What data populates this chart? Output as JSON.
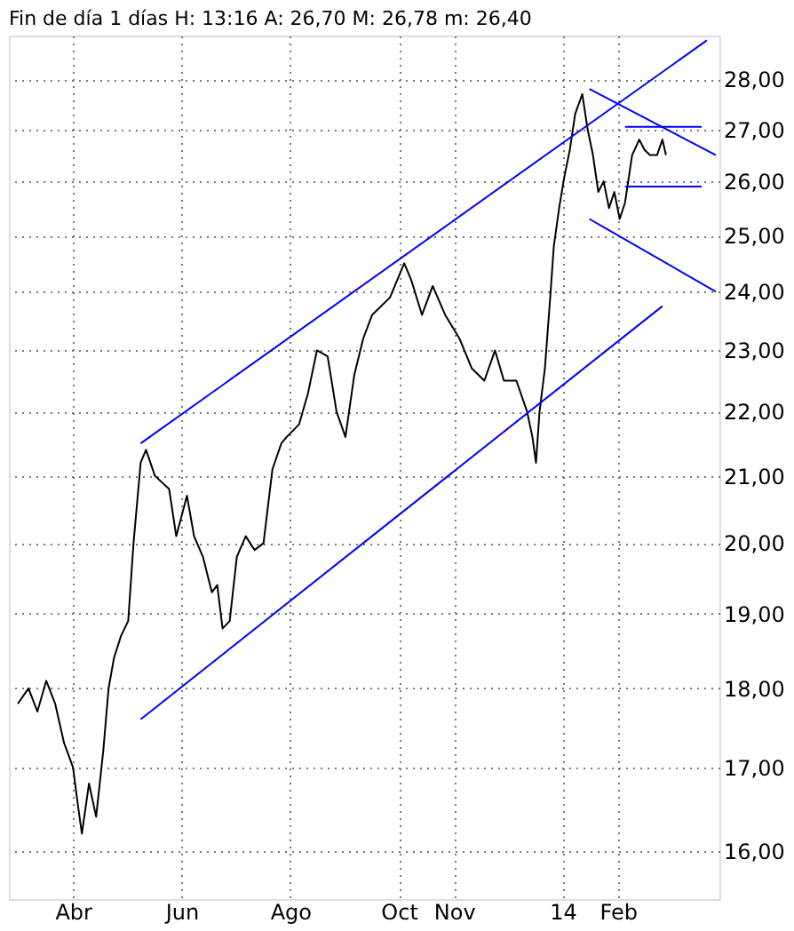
{
  "chart_data": {
    "type": "line",
    "title": "Fin de día 1 días H: 13:16 A: 26,70 M: 26,78 m: 26,40",
    "log": true,
    "grid": true,
    "xlim": [
      "2013-02-24",
      "2014-03-30"
    ],
    "xticks": [
      {
        "value": "2013-04-01",
        "label": "Abr"
      },
      {
        "value": "2013-06-01",
        "label": "Jun"
      },
      {
        "value": "2013-08-01",
        "label": "Ago"
      },
      {
        "value": "2013-10-01",
        "label": "Oct"
      },
      {
        "value": "2013-11-01",
        "label": "Nov"
      },
      {
        "value": "2014-01-01",
        "label": "14"
      },
      {
        "value": "2014-02-01",
        "label": "Feb"
      }
    ],
    "ylim": [
      15.45,
      28.9
    ],
    "yticks": [
      {
        "value": 16,
        "label": "16,00"
      },
      {
        "value": 17,
        "label": "17,00"
      },
      {
        "value": 18,
        "label": "18,00"
      },
      {
        "value": 19,
        "label": "19,00"
      },
      {
        "value": 20,
        "label": "20,00"
      },
      {
        "value": 21,
        "label": "21,00"
      },
      {
        "value": 22,
        "label": "22,00"
      },
      {
        "value": 23,
        "label": "23,00"
      },
      {
        "value": 24,
        "label": "24,00"
      },
      {
        "value": 25,
        "label": "25,00"
      },
      {
        "value": 26,
        "label": "26,00"
      },
      {
        "value": 27,
        "label": "27,00"
      },
      {
        "value": 28,
        "label": "28,00"
      }
    ],
    "series": [
      {
        "color": "#000000",
        "x": [
          "2013-03-01",
          "2013-03-07",
          "2013-03-12",
          "2013-03-17",
          "2013-03-22",
          "2013-03-27",
          "2013-04-01",
          "2013-04-04",
          "2013-04-06",
          "2013-04-10",
          "2013-04-14",
          "2013-04-18",
          "2013-04-21",
          "2013-04-24",
          "2013-04-28",
          "2013-05-02",
          "2013-05-05",
          "2013-05-09",
          "2013-05-12",
          "2013-05-17",
          "2013-05-25",
          "2013-05-29",
          "2013-06-04",
          "2013-06-08",
          "2013-06-13",
          "2013-06-18",
          "2013-06-21",
          "2013-06-24",
          "2013-06-28",
          "2013-07-02",
          "2013-07-07",
          "2013-07-12",
          "2013-07-17",
          "2013-07-22",
          "2013-07-27",
          "2013-07-30",
          "2013-08-06",
          "2013-08-11",
          "2013-08-16",
          "2013-08-22",
          "2013-08-27",
          "2013-09-01",
          "2013-09-06",
          "2013-09-11",
          "2013-09-16",
          "2013-09-26",
          "2013-10-04",
          "2013-10-08",
          "2013-10-14",
          "2013-10-20",
          "2013-10-27",
          "2013-11-04",
          "2013-11-11",
          "2013-11-18",
          "2013-11-24",
          "2013-11-29",
          "2013-12-06",
          "2013-12-12",
          "2013-12-15",
          "2013-12-17",
          "2013-12-19",
          "2013-12-22",
          "2013-12-25",
          "2013-12-27",
          "2013-12-30",
          "2014-01-02",
          "2014-01-05",
          "2014-01-08",
          "2014-01-12",
          "2014-01-15",
          "2014-01-18",
          "2014-01-21",
          "2014-01-24",
          "2014-01-27",
          "2014-01-30",
          "2014-02-02",
          "2014-02-05",
          "2014-02-09",
          "2014-02-13",
          "2014-02-16",
          "2014-02-19",
          "2014-02-23",
          "2014-02-26",
          "2014-02-28"
        ],
        "values": [
          17.8,
          18.0,
          17.7,
          18.1,
          17.8,
          17.3,
          17.0,
          16.5,
          16.2,
          16.8,
          16.4,
          17.2,
          18.0,
          18.4,
          18.7,
          18.9,
          20.0,
          21.2,
          21.4,
          21.0,
          20.8,
          20.1,
          20.7,
          20.1,
          19.8,
          19.3,
          19.4,
          18.8,
          18.9,
          19.8,
          20.1,
          19.9,
          20.0,
          21.1,
          21.5,
          21.6,
          21.8,
          22.3,
          23.0,
          22.9,
          22.0,
          21.6,
          22.6,
          23.2,
          23.6,
          23.9,
          24.5,
          24.2,
          23.6,
          24.1,
          23.6,
          23.2,
          22.7,
          22.5,
          23.0,
          22.5,
          22.5,
          22.0,
          21.6,
          21.2,
          22.0,
          22.7,
          23.9,
          24.8,
          25.5,
          26.1,
          26.6,
          27.3,
          27.7,
          27.0,
          26.5,
          25.8,
          26.0,
          25.5,
          25.8,
          25.3,
          25.6,
          26.5,
          26.8,
          26.6,
          26.5,
          26.5,
          26.8,
          26.5
        ]
      },
      {
        "color": "#0000ff",
        "x": [
          "2013-05-09",
          "2014-03-23"
        ],
        "values": [
          21.5,
          28.8
        ]
      },
      {
        "color": "#0000ff",
        "x": [
          "2013-05-09",
          "2014-02-26"
        ],
        "values": [
          17.6,
          23.75
        ]
      },
      {
        "color": "#0000ff",
        "x": [
          "2014-01-16",
          "2014-03-28"
        ],
        "values": [
          27.8,
          26.5
        ]
      },
      {
        "color": "#0000ff",
        "x": [
          "2014-01-16",
          "2014-03-28"
        ],
        "values": [
          25.3,
          24.0
        ]
      },
      {
        "color": "#0000ff",
        "x": [
          "2014-02-05",
          "2014-03-20"
        ],
        "values": [
          27.05,
          27.05
        ]
      },
      {
        "color": "#0000ff",
        "x": [
          "2014-02-05",
          "2014-03-20"
        ],
        "values": [
          25.9,
          25.9
        ]
      }
    ]
  }
}
